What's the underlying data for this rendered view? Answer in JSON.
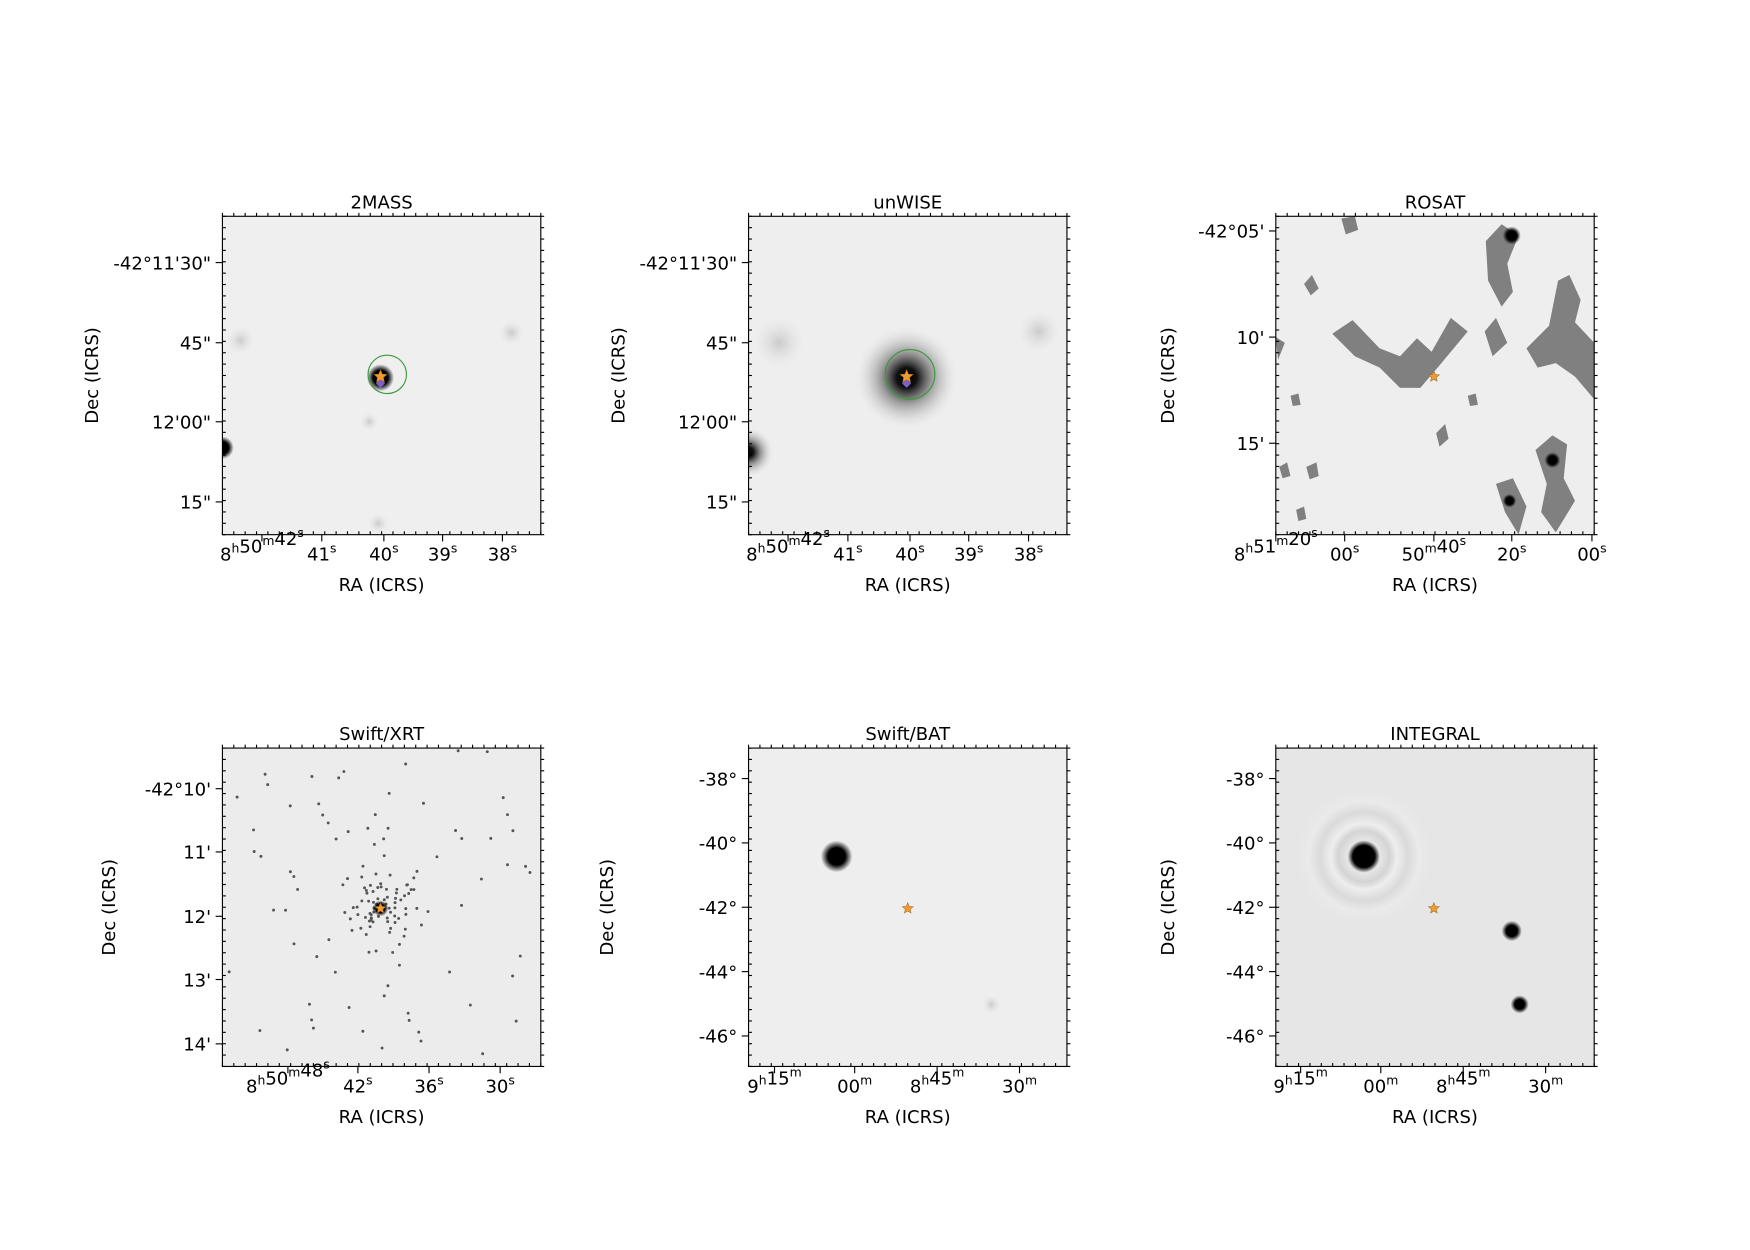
{
  "panels": [
    {
      "title": "2MASS",
      "xlabel": "RA (ICRS)",
      "ylabel": "Dec (ICRS)",
      "xticks": [
        "8h50m42s",
        "41s",
        "40s",
        "39s",
        "38s"
      ],
      "yticks": [
        "-42°11'30\"",
        "45\"",
        "12'00\"",
        "15\""
      ]
    },
    {
      "title": "unWISE",
      "xlabel": "RA (ICRS)",
      "ylabel": "Dec (ICRS)",
      "xticks": [
        "8h50m42s",
        "41s",
        "40s",
        "39s",
        "38s"
      ],
      "yticks": [
        "-42°11'30\"",
        "45\"",
        "12'00\"",
        "15\""
      ]
    },
    {
      "title": "ROSAT",
      "xlabel": "RA (ICRS)",
      "ylabel": "Dec (ICRS)",
      "xticks": [
        "8h51m20s",
        "00s",
        "50m40s",
        "20s",
        "00s"
      ],
      "yticks": [
        "-42°05'",
        "10'",
        "15'"
      ]
    },
    {
      "title": "Swift/XRT",
      "xlabel": "RA (ICRS)",
      "ylabel": "Dec (ICRS)",
      "xticks": [
        "8h50m48s",
        "42s",
        "36s",
        "30s"
      ],
      "yticks": [
        "-42°10'",
        "11'",
        "12'",
        "13'",
        "14'"
      ]
    },
    {
      "title": "Swift/BAT",
      "xlabel": "RA (ICRS)",
      "ylabel": "Dec (ICRS)",
      "xticks": [
        "9h15m",
        "00m",
        "8h45m",
        "30m"
      ],
      "yticks": [
        "-38°",
        "-40°",
        "-42°",
        "-44°",
        "-46°"
      ]
    },
    {
      "title": "INTEGRAL",
      "xlabel": "RA (ICRS)",
      "ylabel": "Dec (ICRS)",
      "xticks": [
        "9h15m",
        "00m",
        "8h45m",
        "30m"
      ],
      "yticks": [
        "-38°",
        "-40°",
        "-42°",
        "-44°",
        "-46°"
      ]
    }
  ]
}
